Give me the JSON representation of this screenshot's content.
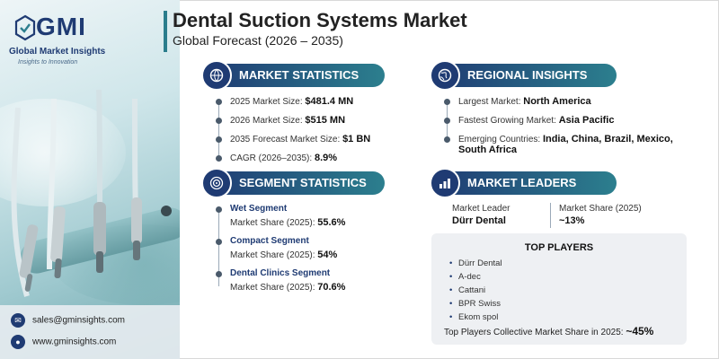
{
  "logo": {
    "abbr": "GMI",
    "name": "Global Market Insights",
    "tagline": "Insights to Innovation"
  },
  "header": {
    "title": "Dental Suction Systems Market",
    "subtitle": "Global Forecast (2026 – 2035)"
  },
  "market_statistics": {
    "heading": "MARKET STATISTICS",
    "icon": "globe-chart-icon",
    "items": [
      {
        "label": "2025 Market Size: ",
        "value": "$481.4 MN"
      },
      {
        "label": "2026 Market Size: ",
        "value": "$515 MN"
      },
      {
        "label": "2035 Forecast Market Size: ",
        "value": "$1 BN"
      },
      {
        "label": "CAGR (2026–2035): ",
        "value": "8.9%"
      }
    ]
  },
  "regional_insights": {
    "heading": "REGIONAL INSIGHTS",
    "icon": "globe-icon",
    "items": [
      {
        "label": "Largest Market: ",
        "value": "North America"
      },
      {
        "label": "Fastest Growing Market: ",
        "value": "Asia Pacific"
      },
      {
        "label": "Emerging Countries: ",
        "value": "India, China, Brazil, Mexico,",
        "value2": "South Africa"
      }
    ]
  },
  "segment_statistics": {
    "heading": "SEGMENT STATISTICS",
    "icon": "target-icon",
    "items": [
      {
        "title": "Wet Segment",
        "label": "Market Share (2025): ",
        "value": "55.6%"
      },
      {
        "title": "Compact Segment",
        "label": "Market Share (2025): ",
        "value": "54%"
      },
      {
        "title": "Dental Clinics Segment",
        "label": "Market Share (2025): ",
        "value": "70.6%"
      }
    ]
  },
  "market_leaders": {
    "heading": "MARKET LEADERS",
    "icon": "bar-chart-icon",
    "leader_label": "Market Leader",
    "leader_value": "Dürr Dental",
    "share_label": "Market Share (2025)",
    "share_value": "~13%"
  },
  "top_players": {
    "heading": "TOP PLAYERS",
    "players": [
      "Dürr Dental",
      "A-dec",
      "Cattani",
      "BPR Swiss",
      "Ekom spol"
    ],
    "collective_label": "Top Players Collective Market Share in 2025: ",
    "collective_value": "~45%"
  },
  "contact": {
    "email": "sales@gminsights.com",
    "website": "www.gminsights.com"
  },
  "colors": {
    "navy": "#1f3b73",
    "teal": "#2c7f8e"
  }
}
